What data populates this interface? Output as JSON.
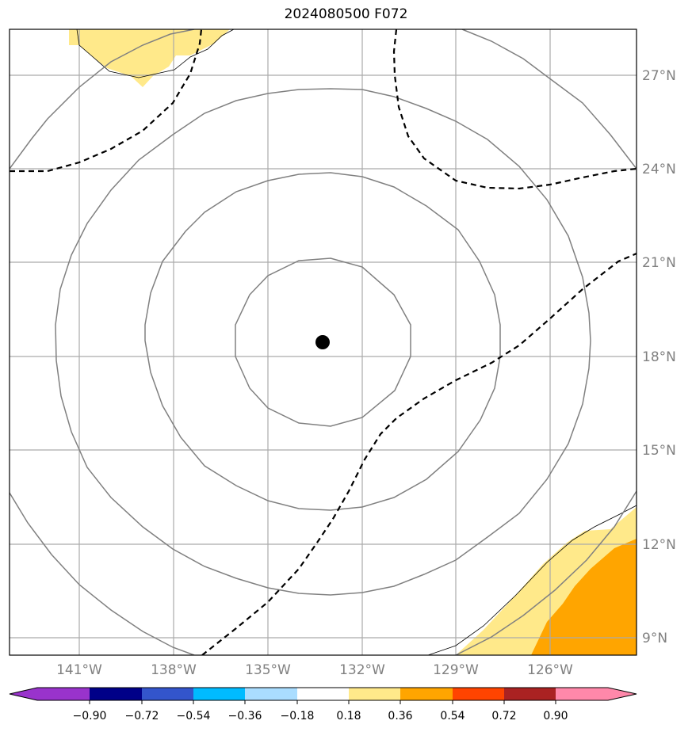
{
  "title": "2024080500 F072",
  "map": {
    "lon_labels": [
      "141°W",
      "138°W",
      "135°W",
      "132°W",
      "129°W",
      "126°W"
    ],
    "lat_labels": [
      "27°N",
      "24°N",
      "21°N",
      "18°N",
      "15°N",
      "12°N",
      "9°N"
    ],
    "grid_color": "#aaaaaa",
    "tick_label_color": "#808080",
    "storm_center": {
      "lon": -133.25,
      "lat": 18.5
    }
  },
  "colorbar": {
    "labels": [
      "−0.90",
      "−0.72",
      "−0.54",
      "−0.36",
      "−0.18",
      "0.18",
      "0.36",
      "0.54",
      "0.72",
      "0.90"
    ],
    "colors": [
      "#9933cc",
      "#000088",
      "#3355cc",
      "#00bbff",
      "#aaddff",
      "#ffffff",
      "#ffe98a",
      "#ffa500",
      "#ff4400",
      "#aa2222",
      "#ff88aa"
    ],
    "extend": "both"
  }
}
